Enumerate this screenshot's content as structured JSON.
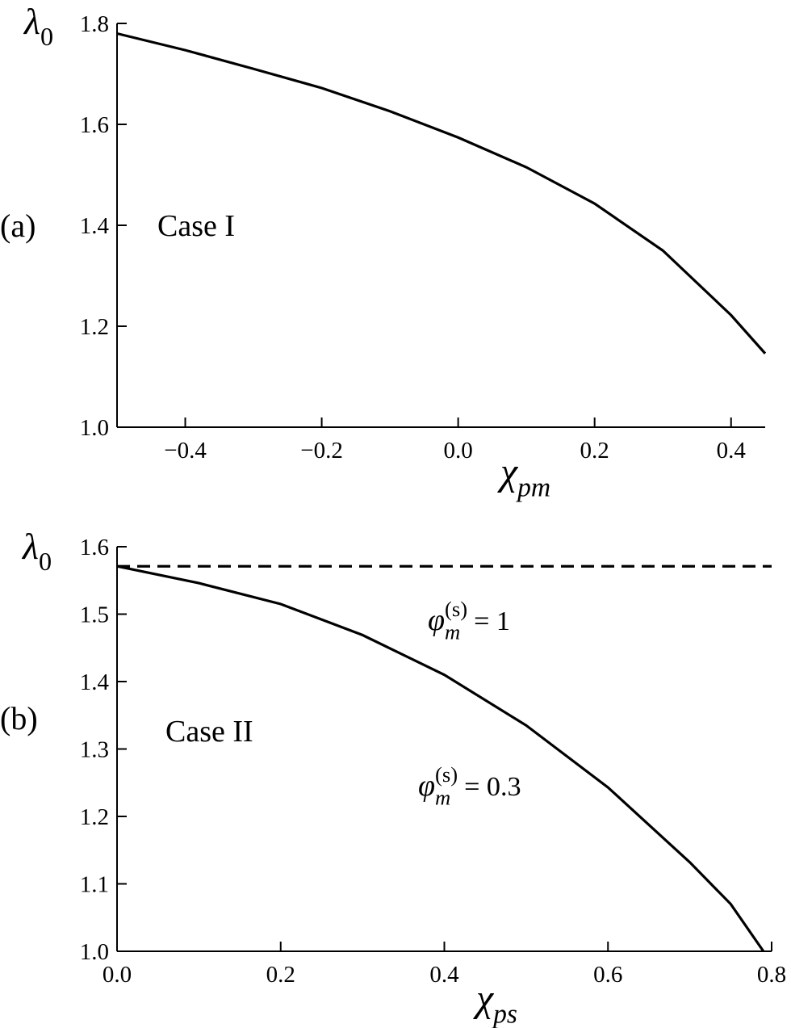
{
  "chart_data": [
    {
      "type": "line",
      "panel_label": "(a)",
      "y_label": {
        "main": "λ",
        "sub": "0"
      },
      "x_label": {
        "main": "χ",
        "sub": "pm"
      },
      "x": [
        -0.5,
        -0.4,
        -0.3,
        -0.2,
        -0.1,
        0,
        0.1,
        0.2,
        0.3,
        0.4,
        0.45
      ],
      "series": [
        {
          "color": "#000000",
          "style": "solid",
          "values": [
            1.78,
            1.747,
            1.71,
            1.672,
            1.626,
            1.574,
            1.515,
            1.443,
            1.35,
            1.222,
            1.146
          ]
        }
      ],
      "xlim": [
        -0.5,
        0.45
      ],
      "ylim": [
        1.0,
        1.8
      ],
      "xticks": [
        {
          "value": -0.4,
          "label": "−0.4"
        },
        {
          "value": -0.2,
          "label": "−0.2"
        },
        {
          "value": 0,
          "label": "0.0"
        },
        0.2,
        0.4
      ],
      "yticks": [
        {
          "value": 1,
          "label": "1.0"
        },
        1.2,
        1.4,
        1.6,
        1.8
      ],
      "annotations": [
        {
          "text": "Case I"
        }
      ]
    },
    {
      "type": "line",
      "panel_label": "(b)",
      "y_label": {
        "main": "λ",
        "sub": "0"
      },
      "x_label": {
        "main": "χ",
        "sub": "ps"
      },
      "x": [
        0,
        0.1,
        0.2,
        0.3,
        0.4,
        0.5,
        0.6,
        0.7,
        0.75,
        0.79,
        0.8
      ],
      "series": [
        {
          "color": "#000000",
          "style": "solid",
          "values": [
            1.571,
            1.546,
            1.515,
            1.469,
            1.41,
            1.335,
            1.243,
            1.132,
            1.07,
            1.0,
            null
          ]
        },
        {
          "color": "#000000",
          "style": "dashed",
          "values": [
            1.571,
            1.571,
            1.571,
            1.571,
            1.571,
            1.571,
            1.571,
            1.571,
            1.571,
            1.571,
            1.571
          ]
        }
      ],
      "xlim": [
        0,
        0.8
      ],
      "ylim": [
        1.0,
        1.6
      ],
      "xticks": [
        {
          "value": 0,
          "label": "0.0"
        },
        0.2,
        0.4,
        0.6,
        0.8
      ],
      "yticks": [
        {
          "value": 1,
          "label": "1.0"
        },
        1.1,
        1.2,
        1.3,
        1.4,
        1.5,
        1.6
      ],
      "annotations": [
        {
          "text": "Case II"
        },
        {
          "main": "φ",
          "sub": "m",
          "sup": "(s)",
          "rest": "= 1"
        },
        {
          "main": "φ",
          "sub": "m",
          "sup": "(s)",
          "rest": "= 0.3"
        }
      ]
    }
  ]
}
